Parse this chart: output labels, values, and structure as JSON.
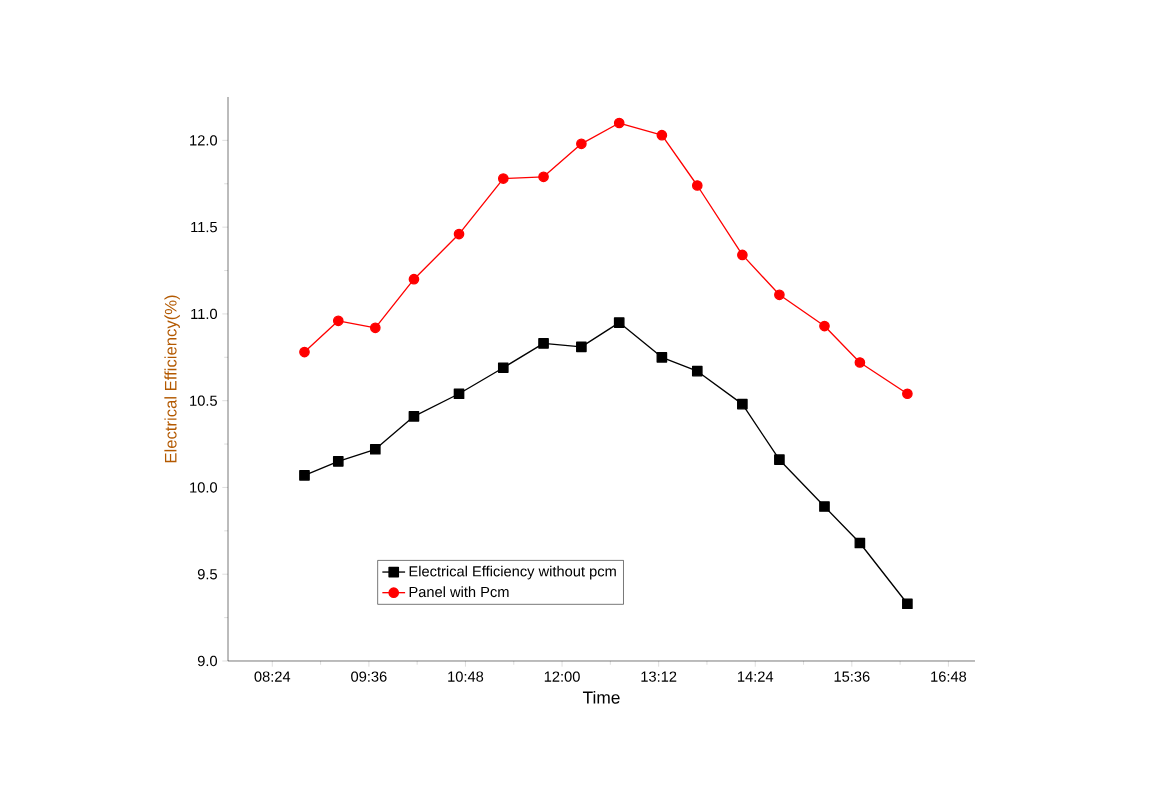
{
  "chart_data": {
    "type": "line",
    "xlabel": "Time",
    "ylabel": "Electrical Efficiency(%)",
    "xlim": [
      7.85,
      17.13
    ],
    "ylim": [
      9,
      12.25
    ],
    "xticks": [
      {
        "value": 8.4,
        "label": "08:24"
      },
      {
        "value": 9.6,
        "label": "09:36"
      },
      {
        "value": 10.8,
        "label": "10:48"
      },
      {
        "value": 12,
        "label": "12:00"
      },
      {
        "value": 13.2,
        "label": "13:12"
      },
      {
        "value": 14.4,
        "label": "14:24"
      },
      {
        "value": 15.6,
        "label": "15:36"
      },
      {
        "value": 16.8,
        "label": "16:48"
      }
    ],
    "yticks": [
      {
        "value": 9,
        "label": "9.0"
      },
      9.5,
      {
        "value": 10,
        "label": "10.0"
      },
      10.5,
      {
        "value": 11,
        "label": "11.0"
      },
      11.5,
      {
        "value": 12,
        "label": "12.0"
      }
    ],
    "x": [
      8.8,
      9.22,
      9.68,
      10.16,
      10.72,
      11.27,
      11.77,
      12.24,
      12.71,
      13.24,
      13.68,
      14.24,
      14.7,
      15.26,
      15.7,
      16.29
    ],
    "legend": "bottom",
    "grid": false,
    "series": [
      {
        "name": "Electrical Efficiency without pcm",
        "color": "#000000",
        "marker": "square",
        "values": [
          10.07,
          10.15,
          10.22,
          10.41,
          10.54,
          10.69,
          10.83,
          10.81,
          10.95,
          10.75,
          10.67,
          10.48,
          10.16,
          9.89,
          9.68,
          9.33
        ]
      },
      {
        "name": "Panel with Pcm",
        "color": "#ff0000",
        "marker": "circle",
        "values": [
          10.78,
          10.96,
          10.92,
          11.2,
          11.46,
          11.78,
          11.79,
          11.98,
          12.1,
          12.03,
          11.74,
          11.34,
          11.11,
          10.93,
          10.72,
          10.54
        ]
      }
    ]
  }
}
